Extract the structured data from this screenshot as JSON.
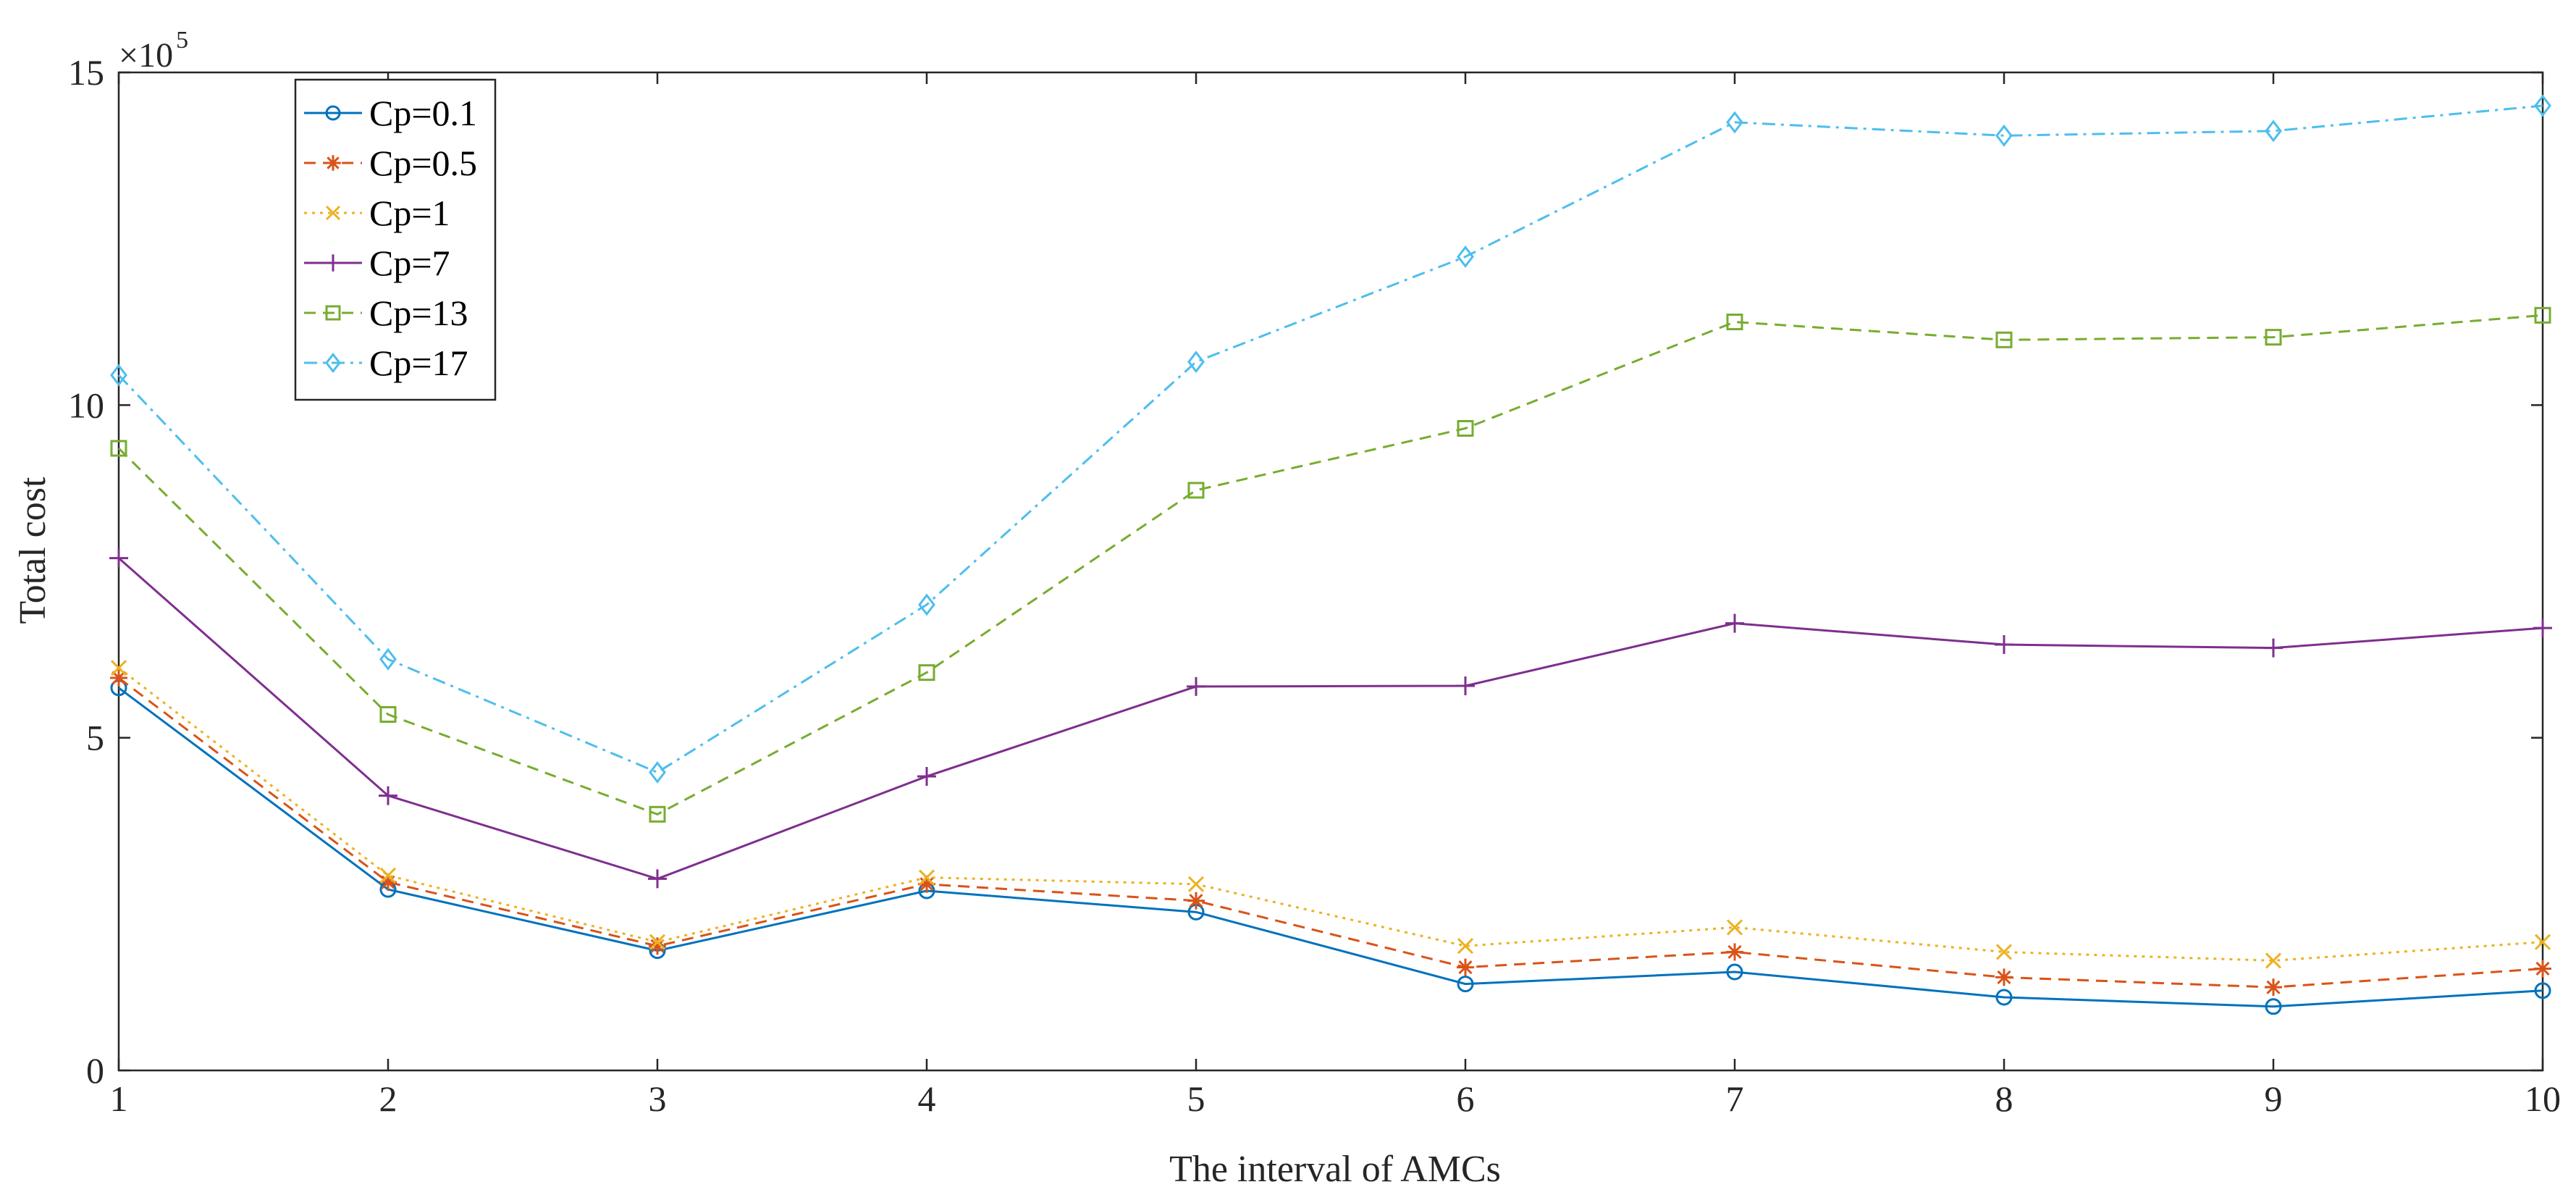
{
  "chart_data": {
    "type": "line",
    "title": "",
    "xlabel": "The interval of AMCs",
    "ylabel": "Total cost",
    "y_scale_base": "×10",
    "y_scale_exponent": "5",
    "y_multiplier": 100000,
    "x": [
      1,
      2,
      3,
      4,
      5,
      6,
      7,
      8,
      9,
      10
    ],
    "xlim": [
      1,
      10
    ],
    "ylim": [
      0,
      15
    ],
    "x_ticks": [
      "1",
      "2",
      "3",
      "4",
      "5",
      "6",
      "7",
      "8",
      "9",
      "10"
    ],
    "y_ticks": [
      "0",
      "5",
      "10",
      "15"
    ],
    "grid": false,
    "legend_position": "top-left",
    "series": [
      {
        "name": "Cp=0.1",
        "color": "#0072BD",
        "marker": "circle",
        "dash": "solid",
        "values": [
          5.75,
          2.72,
          1.8,
          2.7,
          2.38,
          1.3,
          1.48,
          1.1,
          0.96,
          1.2
        ]
      },
      {
        "name": "Cp=0.5",
        "color": "#D95319",
        "marker": "asterisk",
        "dash": "dashed",
        "values": [
          5.9,
          2.83,
          1.87,
          2.8,
          2.55,
          1.55,
          1.78,
          1.4,
          1.25,
          1.53
        ]
      },
      {
        "name": "Cp=1",
        "color": "#EDB120",
        "marker": "x",
        "dash": "dotted",
        "values": [
          6.05,
          2.93,
          1.93,
          2.9,
          2.8,
          1.87,
          2.15,
          1.78,
          1.65,
          1.93
        ]
      },
      {
        "name": "Cp=7",
        "color": "#7E2F8E",
        "marker": "plus",
        "dash": "solid",
        "values": [
          7.7,
          4.13,
          2.88,
          4.42,
          5.77,
          5.78,
          6.72,
          6.4,
          6.35,
          6.65
        ]
      },
      {
        "name": "Cp=13",
        "color": "#77AC30",
        "marker": "square",
        "dash": "dashed",
        "values": [
          9.35,
          5.35,
          3.85,
          5.98,
          8.72,
          9.65,
          11.25,
          10.98,
          11.02,
          11.35
        ]
      },
      {
        "name": "Cp=17",
        "color": "#4DBEEE",
        "marker": "diamond",
        "dash": "dashdot",
        "values": [
          10.45,
          6.18,
          4.48,
          7.0,
          10.65,
          12.23,
          14.25,
          14.05,
          14.12,
          14.5
        ]
      }
    ]
  }
}
